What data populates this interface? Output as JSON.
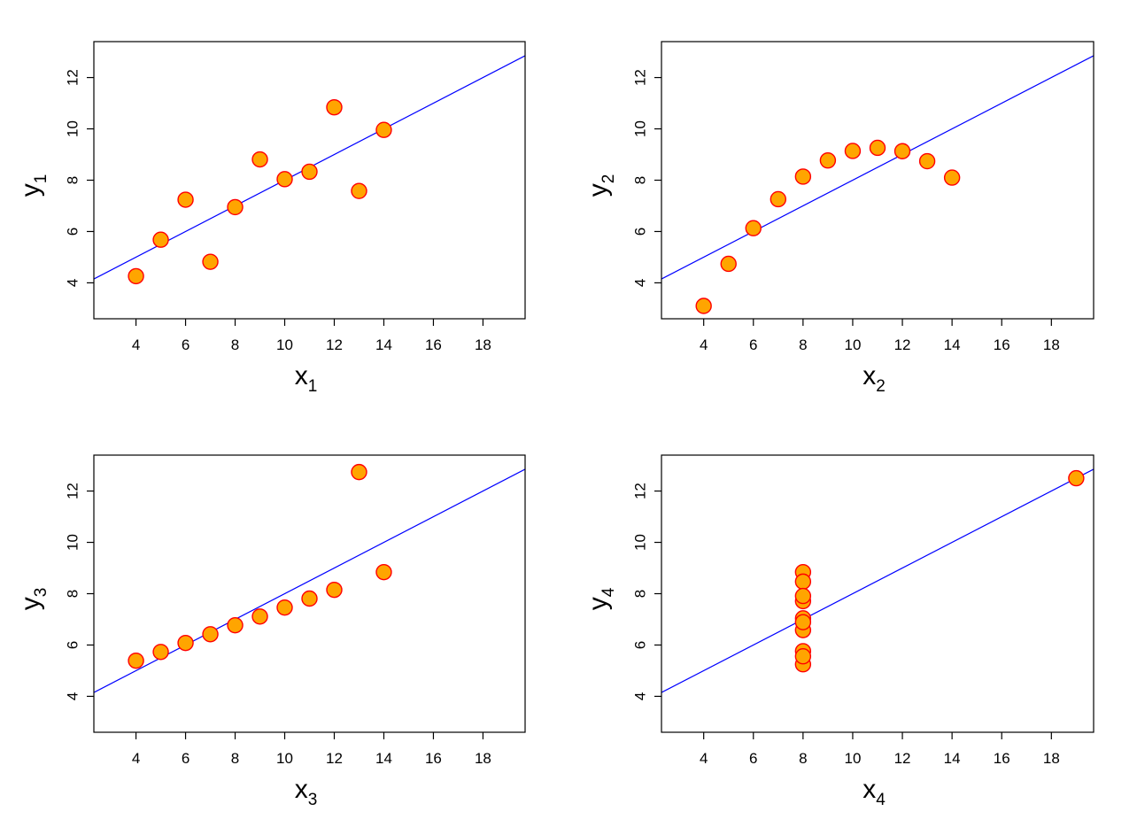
{
  "chart_data": [
    {
      "type": "scatter",
      "title": "",
      "xlabel": "x1",
      "ylabel": "y1",
      "xlabel_letter": "x",
      "xlabel_sub": "1",
      "ylabel_letter": "y",
      "ylabel_sub": "1",
      "xlim": [
        2.3,
        19.7
      ],
      "ylim": [
        2.6,
        13.4
      ],
      "xticks": [
        4,
        6,
        8,
        10,
        12,
        14,
        16,
        18
      ],
      "yticks": [
        4,
        6,
        8,
        10,
        12
      ],
      "grid": false,
      "regression_line": {
        "intercept": 3.0,
        "slope": 0.5
      },
      "series": [
        {
          "x": [
            10,
            8,
            13,
            9,
            11,
            14,
            6,
            4,
            12,
            7,
            5
          ],
          "y": [
            8.04,
            6.95,
            7.58,
            8.81,
            8.33,
            9.96,
            7.24,
            4.26,
            10.84,
            4.82,
            5.68
          ]
        }
      ]
    },
    {
      "type": "scatter",
      "title": "",
      "xlabel": "x2",
      "ylabel": "y2",
      "xlabel_letter": "x",
      "xlabel_sub": "2",
      "ylabel_letter": "y",
      "ylabel_sub": "2",
      "xlim": [
        2.3,
        19.7
      ],
      "ylim": [
        2.6,
        13.4
      ],
      "xticks": [
        4,
        6,
        8,
        10,
        12,
        14,
        16,
        18
      ],
      "yticks": [
        4,
        6,
        8,
        10,
        12
      ],
      "grid": false,
      "regression_line": {
        "intercept": 3.0,
        "slope": 0.5
      },
      "series": [
        {
          "x": [
            10,
            8,
            13,
            9,
            11,
            14,
            6,
            4,
            12,
            7,
            5
          ],
          "y": [
            9.14,
            8.14,
            8.74,
            8.77,
            9.26,
            8.1,
            6.13,
            3.1,
            9.13,
            7.26,
            4.74
          ]
        }
      ]
    },
    {
      "type": "scatter",
      "title": "",
      "xlabel": "x3",
      "ylabel": "y3",
      "xlabel_letter": "x",
      "xlabel_sub": "3",
      "ylabel_letter": "y",
      "ylabel_sub": "3",
      "xlim": [
        2.3,
        19.7
      ],
      "ylim": [
        2.6,
        13.4
      ],
      "xticks": [
        4,
        6,
        8,
        10,
        12,
        14,
        16,
        18
      ],
      "yticks": [
        4,
        6,
        8,
        10,
        12
      ],
      "grid": false,
      "regression_line": {
        "intercept": 3.0,
        "slope": 0.5
      },
      "series": [
        {
          "x": [
            10,
            8,
            13,
            9,
            11,
            14,
            6,
            4,
            12,
            7,
            5
          ],
          "y": [
            7.46,
            6.77,
            12.74,
            7.11,
            7.81,
            8.84,
            6.08,
            5.39,
            8.15,
            6.42,
            5.73
          ]
        }
      ]
    },
    {
      "type": "scatter",
      "title": "",
      "xlabel": "x4",
      "ylabel": "y4",
      "xlabel_letter": "x",
      "xlabel_sub": "4",
      "ylabel_letter": "y",
      "ylabel_sub": "4",
      "xlim": [
        2.3,
        19.7
      ],
      "ylim": [
        2.6,
        13.4
      ],
      "xticks": [
        4,
        6,
        8,
        10,
        12,
        14,
        16,
        18
      ],
      "yticks": [
        4,
        6,
        8,
        10,
        12
      ],
      "grid": false,
      "regression_line": {
        "intercept": 3.0,
        "slope": 0.5
      },
      "series": [
        {
          "x": [
            8,
            8,
            8,
            8,
            8,
            8,
            8,
            19,
            8,
            8,
            8
          ],
          "y": [
            6.58,
            5.76,
            7.71,
            8.84,
            8.47,
            7.04,
            5.25,
            12.5,
            5.56,
            7.91,
            6.89
          ]
        }
      ]
    }
  ],
  "style": {
    "point_fill": "#FFA500",
    "point_stroke": "#FF0000",
    "line_color": "#0000FF",
    "axis_color": "#000000"
  }
}
